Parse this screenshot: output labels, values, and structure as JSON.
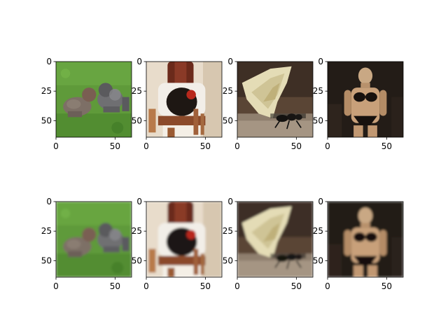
{
  "chart_data": {
    "type": "image-grid",
    "rows": 2,
    "cols": 4,
    "xlim": [
      0,
      64
    ],
    "ylim": [
      64,
      0
    ],
    "x_ticks": [
      0,
      50
    ],
    "y_ticks": [
      0,
      25,
      50
    ],
    "images": [
      {
        "row": 0,
        "col": 0,
        "subject": "two dogs on grass"
      },
      {
        "row": 0,
        "col": 1,
        "subject": "dark object on chair"
      },
      {
        "row": 0,
        "col": 2,
        "subject": "ant carrying leaf"
      },
      {
        "row": 0,
        "col": 3,
        "subject": "person in black bikini"
      },
      {
        "row": 1,
        "col": 0,
        "subject": "two dogs on grass (reconstruction)"
      },
      {
        "row": 1,
        "col": 1,
        "subject": "dark object on chair (reconstruction)"
      },
      {
        "row": 1,
        "col": 2,
        "subject": "ant carrying leaf (reconstruction)"
      },
      {
        "row": 1,
        "col": 3,
        "subject": "person in black bikini (reconstruction)"
      }
    ]
  }
}
